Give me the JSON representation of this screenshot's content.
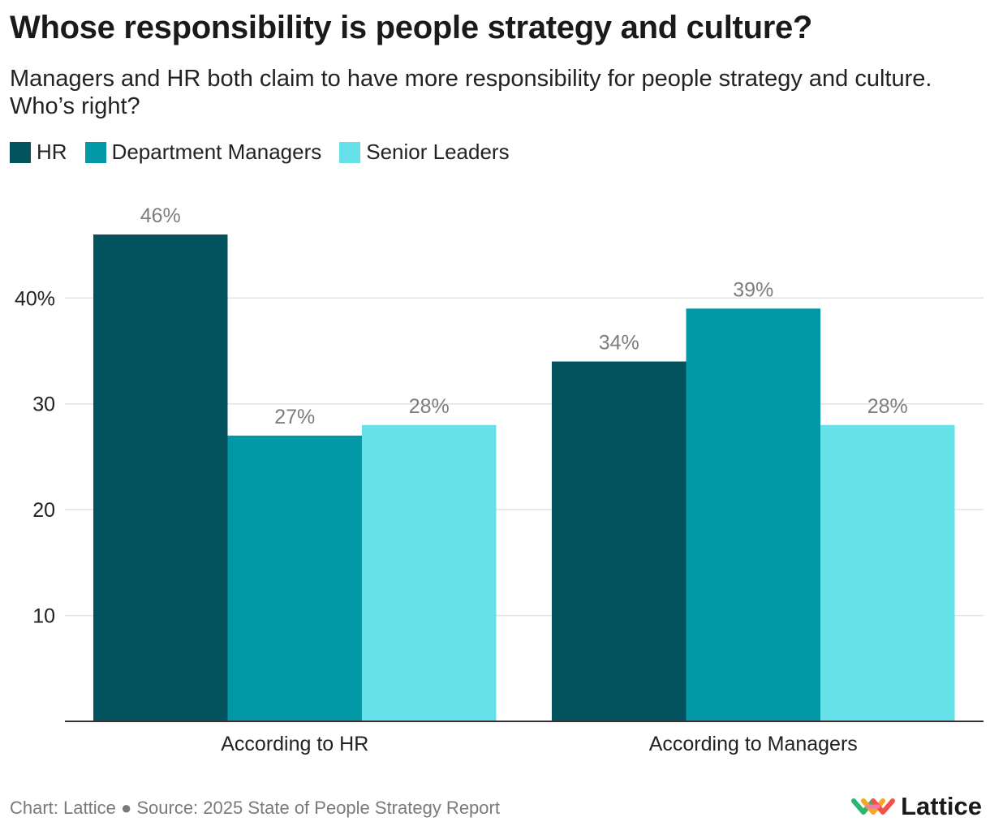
{
  "header": {
    "title": "Whose responsibility is people strategy and culture?",
    "subtitle": "Managers and HR both claim to have more responsibility for people strategy and culture. Who’s right?"
  },
  "footer": {
    "credit": "Chart: Lattice ● Source: 2025 State of People Strategy Report",
    "logo_text": "Lattice"
  },
  "chart_data": {
    "type": "bar",
    "title": "Whose responsibility is people strategy and culture?",
    "categories": [
      "According to HR",
      "According to Managers"
    ],
    "series": [
      {
        "name": "HR",
        "color": "#02535e",
        "values": [
          46,
          34
        ],
        "labels": [
          "46%",
          "34%"
        ]
      },
      {
        "name": "Department Managers",
        "color": "#0298a6",
        "values": [
          27,
          39
        ],
        "labels": [
          "27%",
          "39%"
        ]
      },
      {
        "name": "Senior Leaders",
        "color": "#66e1e9",
        "values": [
          28,
          28
        ],
        "labels": [
          "28%",
          "28%"
        ]
      }
    ],
    "ylim": [
      0,
      46
    ],
    "yticks": [
      10,
      20,
      30,
      40
    ],
    "ytick_labels": [
      "10",
      "20",
      "30",
      "40%"
    ],
    "xlabel": "",
    "ylabel": "",
    "grid": true,
    "legend": "top-left"
  }
}
